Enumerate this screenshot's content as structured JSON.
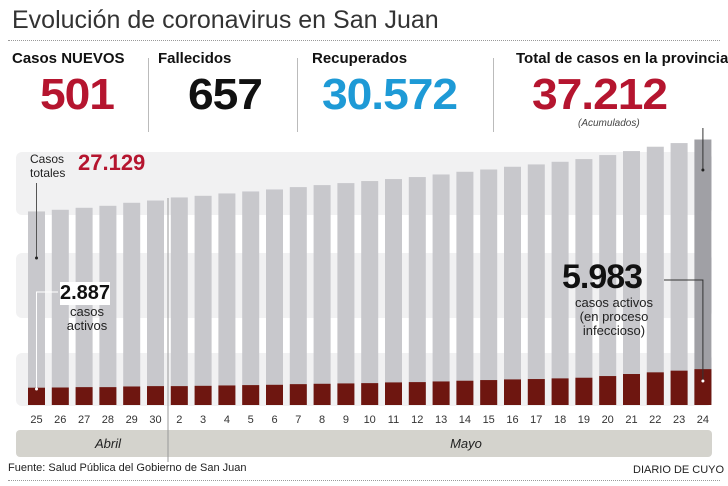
{
  "header": {
    "title": "Evolución de coronavirus en San Juan"
  },
  "stats": [
    {
      "label": "Casos NUEVOS",
      "value": "501",
      "color": "#b5152f"
    },
    {
      "label": "Fallecidos",
      "value": "657",
      "color": "#111111"
    },
    {
      "label": "Recuperados",
      "value": "30.572",
      "color": "#1e9ad6"
    },
    {
      "label": "Total de casos en la provincia",
      "value": "37.212",
      "color": "#b5152f",
      "note": "(Acumulados)"
    }
  ],
  "annotations": {
    "total_label": "Casos totales",
    "total_value": "27.129",
    "active_start_value": "2.887",
    "active_start_label": "casos activos",
    "active_end_value": "5.983",
    "active_end_label": "casos activos (en proceso infeccioso)"
  },
  "chart_data": {
    "type": "bar",
    "categories": [
      "25",
      "26",
      "27",
      "28",
      "29",
      "30",
      "2",
      "3",
      "4",
      "5",
      "6",
      "7",
      "8",
      "9",
      "10",
      "11",
      "12",
      "13",
      "14",
      "15",
      "16",
      "17",
      "18",
      "19",
      "20",
      "21",
      "22",
      "23",
      "24"
    ],
    "months": [
      "Abril",
      "Mayo"
    ],
    "series": [
      {
        "name": "Casos totales",
        "color": "#c8c8cc",
        "values": [
          27129,
          27360,
          27640,
          27920,
          28340,
          28660,
          29090,
          29320,
          29650,
          29930,
          30210,
          30540,
          30820,
          31100,
          31390,
          31670,
          31950,
          32310,
          32690,
          33010,
          33390,
          33720,
          34090,
          34470,
          35030,
          35590,
          36200,
          36710,
          37212
        ]
      },
      {
        "name": "casos activos",
        "color": "#6e1610",
        "values": [
          2887,
          2920,
          2980,
          2980,
          3090,
          3150,
          3150,
          3200,
          3260,
          3320,
          3370,
          3480,
          3540,
          3600,
          3650,
          3770,
          3820,
          3930,
          4050,
          4160,
          4270,
          4330,
          4440,
          4550,
          4830,
          5170,
          5450,
          5730,
          5983
        ]
      }
    ],
    "ylim": [
      0,
      37212
    ],
    "grid": false
  },
  "footer": {
    "source": "Fuente: Salud Pública del Gobierno de San Juan",
    "brand": "DIARIO DE CUYO"
  }
}
